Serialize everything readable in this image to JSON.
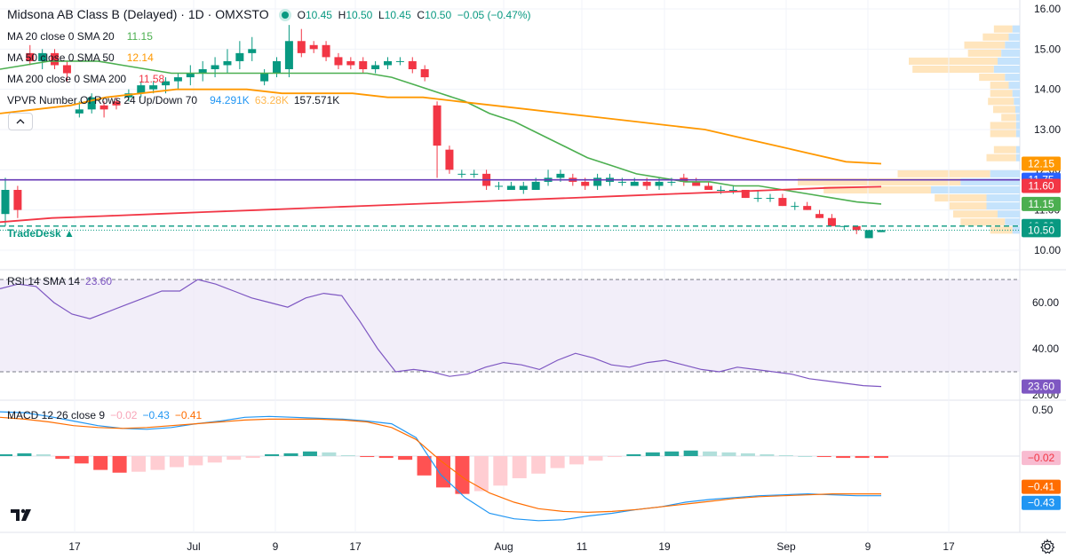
{
  "header": {
    "symbol": "Midsona AB Class B (Delayed) · 1D · OMXSTO",
    "o_label": "O",
    "o_value": "10.45",
    "h_label": "H",
    "h_value": "10.50",
    "l_label": "L",
    "l_value": "10.45",
    "c_label": "C",
    "c_value": "10.50",
    "change": "−0.05 (−0.47%)"
  },
  "legends": {
    "ma20": {
      "label": "MA 20 close 0 SMA 20",
      "value": "11.15",
      "color": "#4caf50"
    },
    "ma50": {
      "label": "MA 50 close 0 SMA 50",
      "value": "12.14",
      "color": "#ff9800"
    },
    "ma200": {
      "label": "MA 200 close 0 SMA 200",
      "value": "11.58",
      "color": "#f23645"
    },
    "vpvr": {
      "label": "VPVR Number Of Rows 24 Up/Down 70",
      "up": "94.291K",
      "down": "63.28K",
      "total": "157.571K"
    },
    "rsi": {
      "label": "RSI 14 SMA 14",
      "value": "23.60",
      "color": "#7e57c2"
    },
    "macd": {
      "label": "MACD 12 26 close 9",
      "hist": "−0.02",
      "macd": "−0.43",
      "signal": "−0.41"
    }
  },
  "tradedesk": "TradeDesk",
  "colors": {
    "up": "#089981",
    "down": "#f23645",
    "ma20": "#4caf50",
    "ma50": "#ff9800",
    "ma200": "#f23645",
    "rsi": "#7e57c2",
    "macd": "#2196f3",
    "signal": "#ff6d00",
    "hline": "#673ab7"
  },
  "price_axis": {
    "ticks": [
      "16.00",
      "15.00",
      "14.00",
      "13.00",
      "12.00",
      "11.00",
      "10.00"
    ]
  },
  "price_labels": [
    {
      "text": "12.15",
      "value": 12.15,
      "color": "#ff9800"
    },
    {
      "text": "11.75",
      "value": 11.75,
      "color": "#2962ff"
    },
    {
      "text": "11.60",
      "value": 11.6,
      "color": "#f23645"
    },
    {
      "text": "11.15",
      "value": 11.15,
      "color": "#4caf50"
    },
    {
      "text": "10.60",
      "value": 10.6,
      "color": "#089981"
    },
    {
      "text": "10.50",
      "value": 10.5,
      "color": "#089981"
    }
  ],
  "rsi_axis": {
    "ticks": [
      "60.00",
      "40.00",
      "20.00"
    ],
    "label": "23.60"
  },
  "macd_axis": {
    "ticks": [
      "0.50"
    ],
    "labels": [
      {
        "text": "−0.02",
        "value": -0.02,
        "color": "#f8bbd0",
        "textColor": "#f23645"
      },
      {
        "text": "−0.41",
        "value": -0.41,
        "color": "#ff6d00",
        "textColor": "#ffffff"
      },
      {
        "text": "−0.43",
        "value": -0.43,
        "color": "#2196f3",
        "textColor": "#ffffff"
      }
    ]
  },
  "time_axis": {
    "ticks": [
      "17",
      "Jul",
      "9",
      "17",
      "Aug",
      "11",
      "19",
      "Sep",
      "9",
      "17"
    ]
  },
  "chart_data": {
    "type": "candlestick",
    "title": "Midsona AB Class B (Delayed) · 1D · OMXSTO",
    "candles": [
      [
        10.9,
        11.8,
        10.6,
        11.5
      ],
      [
        11.5,
        11.6,
        10.8,
        11.0
      ],
      [
        14.9,
        15.1,
        14.6,
        14.7
      ],
      [
        14.7,
        15.0,
        14.5,
        14.9
      ],
      [
        14.9,
        15.0,
        14.5,
        14.6
      ],
      [
        14.6,
        14.7,
        14.2,
        14.4
      ],
      [
        13.4,
        13.7,
        13.3,
        13.5
      ],
      [
        13.5,
        13.9,
        13.4,
        13.8
      ],
      [
        13.6,
        13.7,
        13.3,
        13.5
      ],
      [
        13.7,
        13.8,
        13.5,
        13.6
      ],
      [
        13.8,
        14.0,
        13.7,
        13.9
      ],
      [
        13.9,
        14.2,
        13.8,
        14.1
      ],
      [
        14.0,
        14.2,
        13.9,
        14.1
      ],
      [
        14.1,
        14.3,
        13.9,
        14.2
      ],
      [
        14.2,
        14.4,
        14.0,
        14.3
      ],
      [
        14.3,
        14.6,
        14.1,
        14.4
      ],
      [
        14.4,
        14.7,
        14.2,
        14.5
      ],
      [
        14.5,
        14.8,
        14.3,
        14.6
      ],
      [
        14.6,
        15.0,
        14.4,
        14.7
      ],
      [
        14.7,
        15.2,
        14.5,
        14.9
      ],
      [
        14.9,
        15.3,
        14.7,
        15.0
      ],
      [
        14.2,
        14.5,
        14.1,
        14.4
      ],
      [
        14.4,
        14.8,
        14.3,
        14.7
      ],
      [
        14.5,
        15.6,
        14.3,
        15.2
      ],
      [
        15.2,
        15.5,
        14.8,
        14.9
      ],
      [
        15.1,
        15.2,
        14.9,
        15.0
      ],
      [
        15.1,
        15.2,
        14.7,
        14.8
      ],
      [
        14.8,
        14.9,
        14.5,
        14.6
      ],
      [
        14.7,
        14.8,
        14.5,
        14.6
      ],
      [
        14.7,
        14.8,
        14.4,
        14.5
      ],
      [
        14.5,
        14.7,
        14.4,
        14.6
      ],
      [
        14.6,
        14.8,
        14.5,
        14.7
      ],
      [
        14.7,
        14.8,
        14.6,
        14.7
      ],
      [
        14.7,
        14.8,
        14.4,
        14.5
      ],
      [
        14.5,
        14.6,
        14.2,
        14.3
      ],
      [
        13.6,
        13.7,
        11.8,
        12.6
      ],
      [
        12.5,
        12.6,
        11.9,
        12.0
      ],
      [
        11.9,
        12.0,
        11.8,
        11.9
      ],
      [
        11.9,
        12.0,
        11.8,
        11.9
      ],
      [
        11.9,
        12.0,
        11.5,
        11.6
      ],
      [
        11.6,
        11.7,
        11.5,
        11.6
      ],
      [
        11.5,
        11.7,
        11.5,
        11.6
      ],
      [
        11.5,
        11.7,
        11.4,
        11.6
      ],
      [
        11.5,
        11.8,
        11.5,
        11.7
      ],
      [
        11.7,
        12.0,
        11.6,
        11.8
      ],
      [
        11.8,
        12.0,
        11.7,
        11.9
      ],
      [
        11.8,
        11.9,
        11.6,
        11.7
      ],
      [
        11.7,
        11.8,
        11.5,
        11.6
      ],
      [
        11.6,
        11.9,
        11.5,
        11.8
      ],
      [
        11.7,
        11.9,
        11.6,
        11.8
      ],
      [
        11.7,
        11.8,
        11.6,
        11.7
      ],
      [
        11.6,
        11.8,
        11.6,
        11.7
      ],
      [
        11.7,
        11.8,
        11.5,
        11.6
      ],
      [
        11.6,
        11.8,
        11.5,
        11.7
      ],
      [
        11.7,
        11.8,
        11.6,
        11.7
      ],
      [
        11.8,
        11.9,
        11.6,
        11.7
      ],
      [
        11.7,
        11.8,
        11.6,
        11.6
      ],
      [
        11.6,
        11.7,
        11.5,
        11.5
      ],
      [
        11.5,
        11.6,
        11.4,
        11.5
      ],
      [
        11.5,
        11.6,
        11.4,
        11.5
      ],
      [
        11.5,
        11.5,
        11.3,
        11.3
      ],
      [
        11.3,
        11.5,
        11.2,
        11.3
      ],
      [
        11.3,
        11.4,
        11.2,
        11.3
      ],
      [
        11.3,
        11.4,
        11.1,
        11.1
      ],
      [
        11.1,
        11.2,
        11.0,
        11.1
      ],
      [
        11.1,
        11.2,
        11.0,
        11.0
      ],
      [
        10.9,
        11.0,
        10.8,
        10.8
      ],
      [
        10.8,
        10.9,
        10.6,
        10.6
      ],
      [
        10.6,
        10.6,
        10.5,
        10.6
      ],
      [
        10.6,
        10.6,
        10.4,
        10.5
      ],
      [
        10.3,
        10.5,
        10.3,
        10.5
      ],
      [
        10.45,
        10.5,
        10.45,
        10.5
      ]
    ],
    "ma20": [
      14.5,
      14.6,
      14.7,
      14.7,
      14.7,
      14.6,
      14.5,
      14.4,
      14.4,
      14.4,
      14.4,
      14.4,
      14.4,
      14.4,
      14.4,
      14.4,
      14.3,
      14.1,
      13.9,
      13.7,
      13.4,
      13.2,
      12.9,
      12.6,
      12.3,
      12.1,
      11.9,
      11.8,
      11.7,
      11.7,
      11.6,
      11.6,
      11.5,
      11.4,
      11.3,
      11.2,
      11.15
    ],
    "ma50": [
      13.4,
      13.5,
      13.6,
      13.8,
      13.9,
      14.0,
      14.0,
      14.0,
      13.9,
      13.9,
      13.9,
      13.8,
      13.8,
      13.7,
      13.6,
      13.5,
      13.4,
      13.3,
      13.2,
      13.1,
      13.0,
      12.8,
      12.6,
      12.4,
      12.2,
      12.15
    ],
    "ma200": [
      10.7,
      10.8,
      10.85,
      10.9,
      10.95,
      11.0,
      11.05,
      11.1,
      11.15,
      11.2,
      11.25,
      11.3,
      11.35,
      11.4,
      11.45,
      11.5,
      11.55,
      11.58
    ],
    "rsi": [
      66,
      68,
      67,
      60,
      55,
      53,
      56,
      59,
      62,
      65,
      65,
      70,
      68,
      65,
      62,
      60,
      58,
      62,
      64,
      63,
      52,
      40,
      30,
      31,
      30,
      28,
      29,
      32,
      34,
      33,
      31,
      35,
      38,
      36,
      33,
      32,
      34,
      35,
      33,
      31,
      30,
      32,
      31,
      30,
      29,
      27,
      26,
      25,
      24,
      23.6
    ],
    "macd": [
      0.48,
      0.47,
      0.43,
      0.38,
      0.33,
      0.3,
      0.29,
      0.31,
      0.35,
      0.38,
      0.42,
      0.43,
      0.42,
      0.41,
      0.4,
      0.38,
      0.35,
      0.2,
      -0.2,
      -0.45,
      -0.62,
      -0.68,
      -0.7,
      -0.69,
      -0.65,
      -0.62,
      -0.58,
      -0.55,
      -0.5,
      -0.47,
      -0.45,
      -0.43,
      -0.42,
      -0.41,
      -0.42,
      -0.43,
      -0.43
    ],
    "signal": [
      0.42,
      0.4,
      0.37,
      0.33,
      0.31,
      0.3,
      0.31,
      0.33,
      0.35,
      0.37,
      0.39,
      0.4,
      0.4,
      0.4,
      0.39,
      0.37,
      0.31,
      0.18,
      -0.05,
      -0.25,
      -0.4,
      -0.5,
      -0.57,
      -0.6,
      -0.61,
      -0.6,
      -0.58,
      -0.55,
      -0.52,
      -0.49,
      -0.46,
      -0.44,
      -0.43,
      -0.42,
      -0.41,
      -0.41,
      -0.41
    ],
    "hist": [
      0.02,
      0.03,
      0.02,
      -0.03,
      -0.08,
      -0.15,
      -0.18,
      -0.17,
      -0.15,
      -0.12,
      -0.1,
      -0.07,
      -0.04,
      -0.02,
      0.02,
      0.03,
      0.05,
      0.04,
      0.01,
      -0.01,
      -0.02,
      -0.04,
      -0.21,
      -0.34,
      -0.41,
      -0.38,
      -0.32,
      -0.24,
      -0.19,
      -0.13,
      -0.09,
      -0.05,
      -0.01,
      0.02,
      0.04,
      0.05,
      0.06,
      0.05,
      0.04,
      0.03,
      0.02,
      0.01,
      0.0,
      -0.01,
      -0.02,
      -0.02,
      -0.02
    ],
    "vpvr": [
      {
        "price": 15.5,
        "up": 0.1,
        "down": 0.25
      },
      {
        "price": 15.3,
        "up": 0.15,
        "down": 0.35
      },
      {
        "price": 15.1,
        "up": 0.2,
        "down": 0.55
      },
      {
        "price": 14.9,
        "up": 0.25,
        "down": 0.45
      },
      {
        "price": 14.7,
        "up": 0.3,
        "down": 1.2
      },
      {
        "price": 14.5,
        "up": 0.35,
        "down": 1.1
      },
      {
        "price": 14.3,
        "up": 0.2,
        "down": 0.35
      },
      {
        "price": 14.1,
        "up": 0.15,
        "down": 0.25
      },
      {
        "price": 13.9,
        "up": 0.1,
        "down": 0.3
      },
      {
        "price": 13.7,
        "up": 0.08,
        "down": 0.35
      },
      {
        "price": 13.5,
        "up": 0.06,
        "down": 0.3
      },
      {
        "price": 13.3,
        "up": 0.05,
        "down": 0.2
      },
      {
        "price": 13.1,
        "up": 0.05,
        "down": 0.35
      },
      {
        "price": 12.9,
        "up": 0.05,
        "down": 0.35
      },
      {
        "price": 12.5,
        "up": 0.05,
        "down": 0.3
      },
      {
        "price": 12.3,
        "up": 0.05,
        "down": 0.4
      },
      {
        "price": 11.9,
        "up": 0.4,
        "down": 1.25
      },
      {
        "price": 11.7,
        "up": 0.8,
        "down": 2.2
      },
      {
        "price": 11.5,
        "up": 1.2,
        "down": 1.45
      },
      {
        "price": 11.3,
        "up": 0.45,
        "down": 0.7
      },
      {
        "price": 11.1,
        "up": 0.45,
        "down": 0.5
      },
      {
        "price": 10.9,
        "up": 0.3,
        "down": 0.6
      },
      {
        "price": 10.7,
        "up": 0.2,
        "down": 0.6
      },
      {
        "price": 10.5,
        "up": 0.1,
        "down": 0.3
      }
    ],
    "hline": 11.75,
    "y_range": [
      10.0,
      16.0
    ],
    "rsi_range": [
      20,
      70
    ],
    "macd_range": [
      -0.75,
      0.5
    ]
  }
}
